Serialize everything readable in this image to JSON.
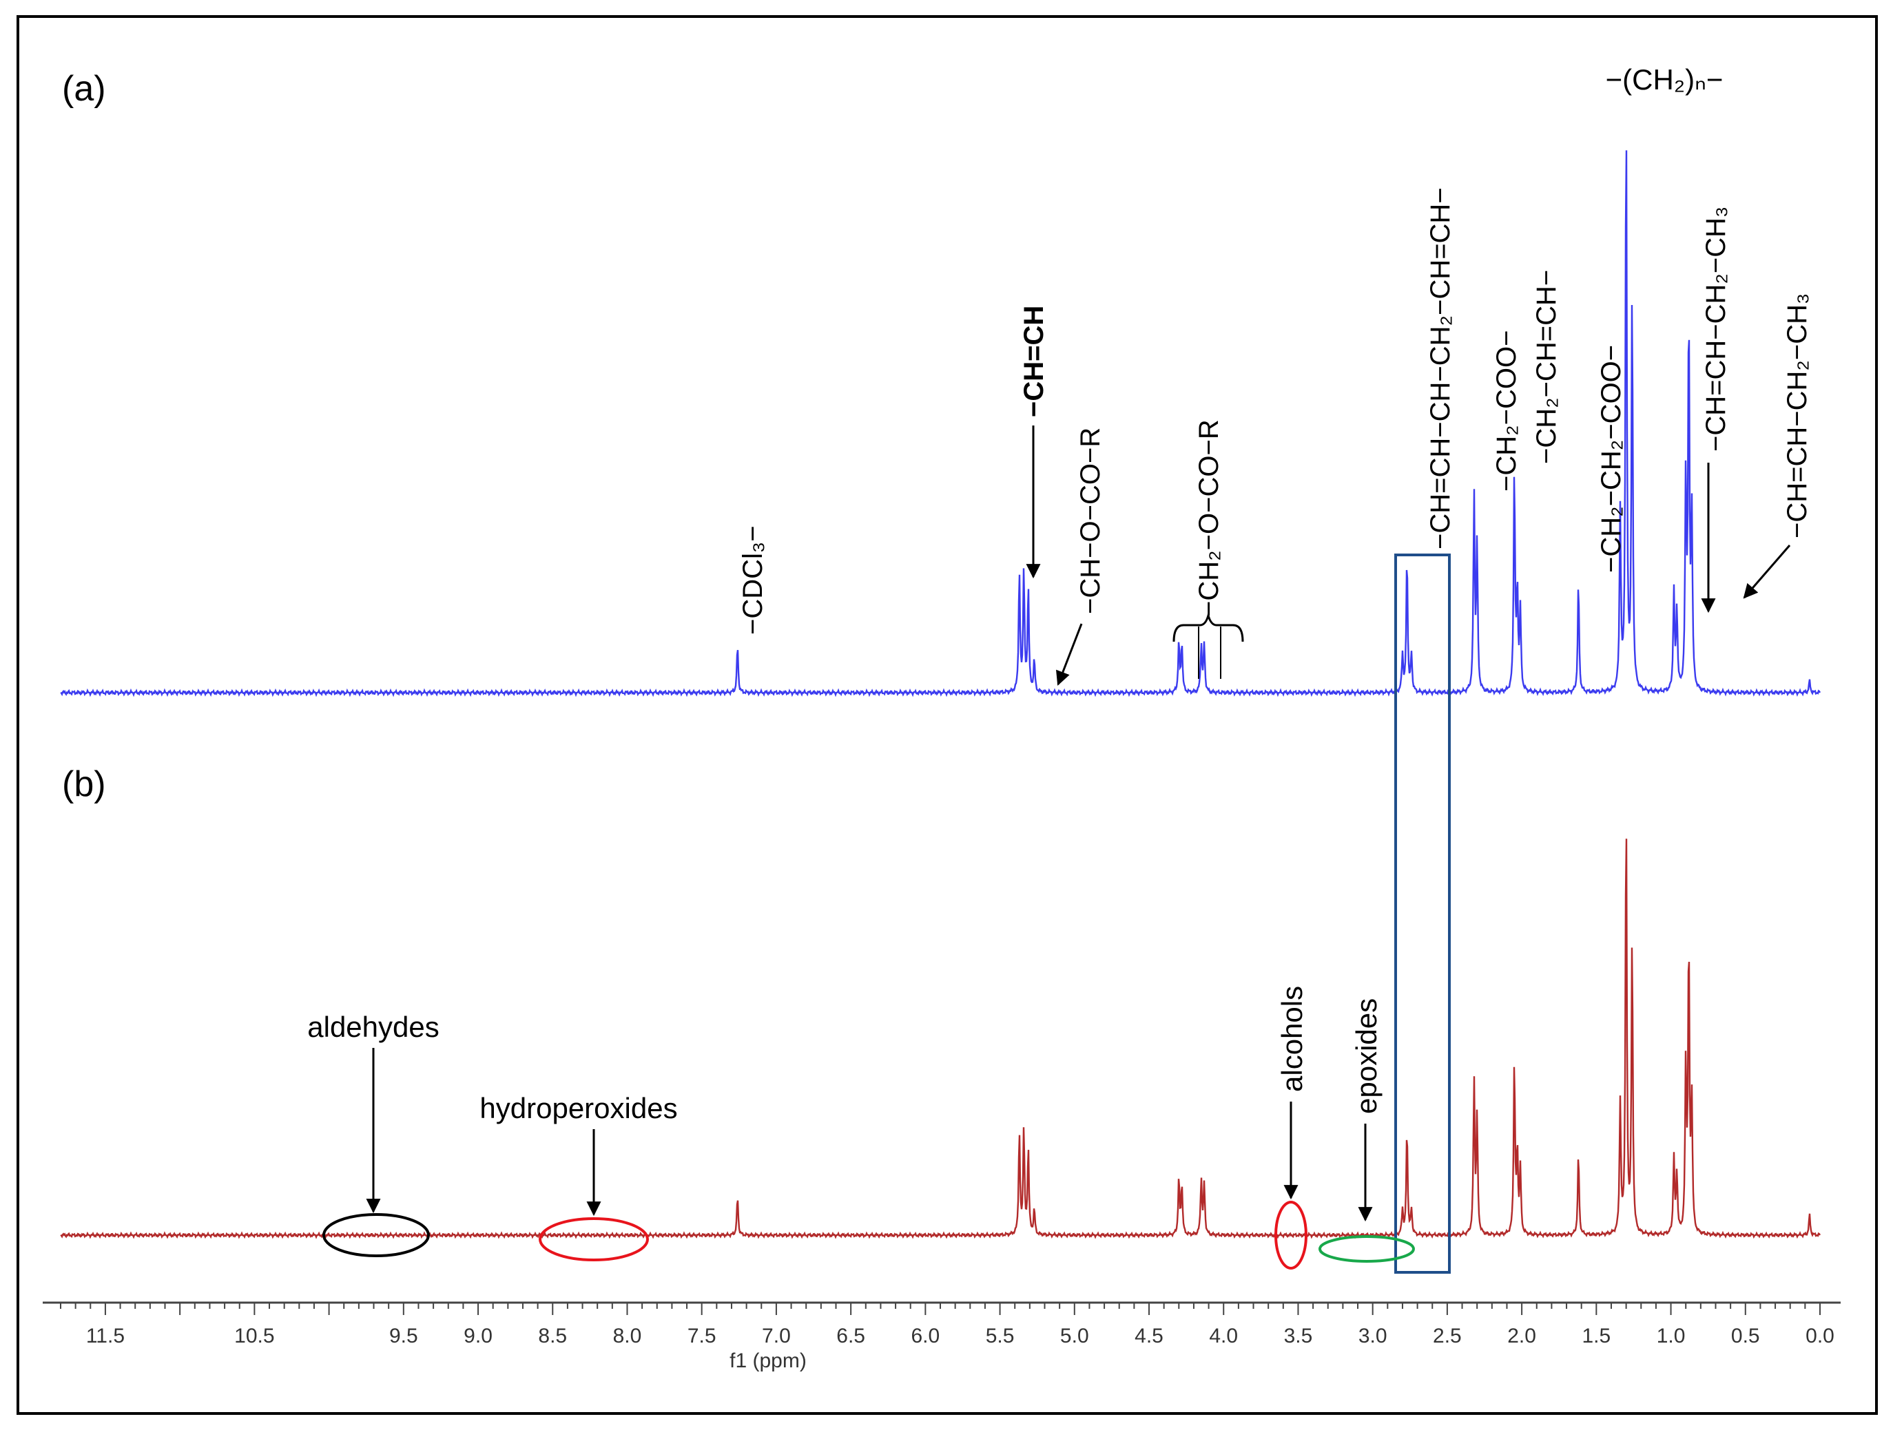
{
  "panels": {
    "a_label": "(a)",
    "b_label": "(b)"
  },
  "colors": {
    "spectrum_a": "#3b3bef",
    "spectrum_b": "#b22a2a",
    "aldehydes_marker": "#000000",
    "hydroperoxides_marker": "#e8141c",
    "alcohols_marker": "#e8141c",
    "epoxides_marker": "#18a84a",
    "highlight_box": "#1f4e8a"
  },
  "chart_data": {
    "type": "line",
    "xlabel": "f1 (ppm)",
    "xlim": [
      11.8,
      0.0
    ],
    "x_reversed": true,
    "ticks": [
      "11.5",
      "10.5",
      "9.5",
      "9.0",
      "8.5",
      "8.0",
      "7.5",
      "7.0",
      "6.5",
      "6.0",
      "5.5",
      "5.0",
      "4.5",
      "4.0",
      "3.5",
      "3.0",
      "2.5",
      "2.0",
      "1.5",
      "1.0",
      "0.5",
      "0.0"
    ],
    "series": [
      {
        "panel": "(a)",
        "peaks": [
          {
            "ppm": 7.26,
            "height": 0.08
          },
          {
            "ppm": 5.37,
            "height": 0.205
          },
          {
            "ppm": 5.34,
            "height": 0.21
          },
          {
            "ppm": 5.31,
            "height": 0.18
          },
          {
            "ppm": 5.27,
            "height": 0.055
          },
          {
            "ppm": 4.3,
            "height": 0.085
          },
          {
            "ppm": 4.28,
            "height": 0.085
          },
          {
            "ppm": 4.15,
            "height": 0.082
          },
          {
            "ppm": 4.13,
            "height": 0.082
          },
          {
            "ppm": 2.8,
            "height": 0.065
          },
          {
            "ppm": 2.77,
            "height": 0.235
          },
          {
            "ppm": 2.74,
            "height": 0.065
          },
          {
            "ppm": 2.32,
            "height": 0.335
          },
          {
            "ppm": 2.3,
            "height": 0.25
          },
          {
            "ppm": 2.05,
            "height": 0.38
          },
          {
            "ppm": 2.03,
            "height": 0.17
          },
          {
            "ppm": 2.01,
            "height": 0.14
          },
          {
            "ppm": 1.62,
            "height": 0.19
          },
          {
            "ppm": 1.34,
            "height": 0.31
          },
          {
            "ppm": 1.3,
            "height": 1.0
          },
          {
            "ppm": 1.26,
            "height": 0.68
          },
          {
            "ppm": 0.98,
            "height": 0.17
          },
          {
            "ppm": 0.96,
            "height": 0.14
          },
          {
            "ppm": 0.9,
            "height": 0.36
          },
          {
            "ppm": 0.88,
            "height": 0.64
          },
          {
            "ppm": 0.86,
            "height": 0.3
          },
          {
            "ppm": 0.07,
            "height": 0.02
          }
        ]
      },
      {
        "panel": "(b)",
        "peaks": [
          {
            "ppm": 7.26,
            "height": 0.075
          },
          {
            "ppm": 5.37,
            "height": 0.2
          },
          {
            "ppm": 5.34,
            "height": 0.21
          },
          {
            "ppm": 5.31,
            "height": 0.17
          },
          {
            "ppm": 5.27,
            "height": 0.05
          },
          {
            "ppm": 4.3,
            "height": 0.11
          },
          {
            "ppm": 4.28,
            "height": 0.1
          },
          {
            "ppm": 4.15,
            "height": 0.11
          },
          {
            "ppm": 4.13,
            "height": 0.1
          },
          {
            "ppm": 2.8,
            "height": 0.05
          },
          {
            "ppm": 2.77,
            "height": 0.21
          },
          {
            "ppm": 2.74,
            "height": 0.05
          },
          {
            "ppm": 2.32,
            "height": 0.3
          },
          {
            "ppm": 2.3,
            "height": 0.23
          },
          {
            "ppm": 2.05,
            "height": 0.34
          },
          {
            "ppm": 2.03,
            "height": 0.16
          },
          {
            "ppm": 2.01,
            "height": 0.13
          },
          {
            "ppm": 1.62,
            "height": 0.16
          },
          {
            "ppm": 1.34,
            "height": 0.26
          },
          {
            "ppm": 1.3,
            "height": 0.84
          },
          {
            "ppm": 1.26,
            "height": 0.58
          },
          {
            "ppm": 0.98,
            "height": 0.15
          },
          {
            "ppm": 0.96,
            "height": 0.12
          },
          {
            "ppm": 0.9,
            "height": 0.33
          },
          {
            "ppm": 0.88,
            "height": 0.57
          },
          {
            "ppm": 0.86,
            "height": 0.26
          },
          {
            "ppm": 0.07,
            "height": 0.04
          }
        ]
      }
    ],
    "annotations": {
      "cdcl3": "−CDCl₃−",
      "chch": "−CH=CH",
      "ch_ocor": "−CH−O−CO−R",
      "ch2_ocor": "−CH₂−O−CO−R",
      "bisallylic": "−CH=CH−CH−CH₂−CH=CH−",
      "ch2coo": "−CH₂−COO−",
      "allylic": "−CH₂−CH=CH−",
      "ch2ch2coo": "−CH₂−CH₂−COO−",
      "ch2n": "−(CH₂)ₙ−",
      "ch3_lin": "−CH=CH−CH₂−CH₃",
      "ch3_2": "−CH=CH−CH₂−CH₃",
      "aldehydes": "aldehydes",
      "hydroperoxides": "hydroperoxides",
      "alcohols": "alcohols",
      "epoxides": "epoxides"
    }
  }
}
